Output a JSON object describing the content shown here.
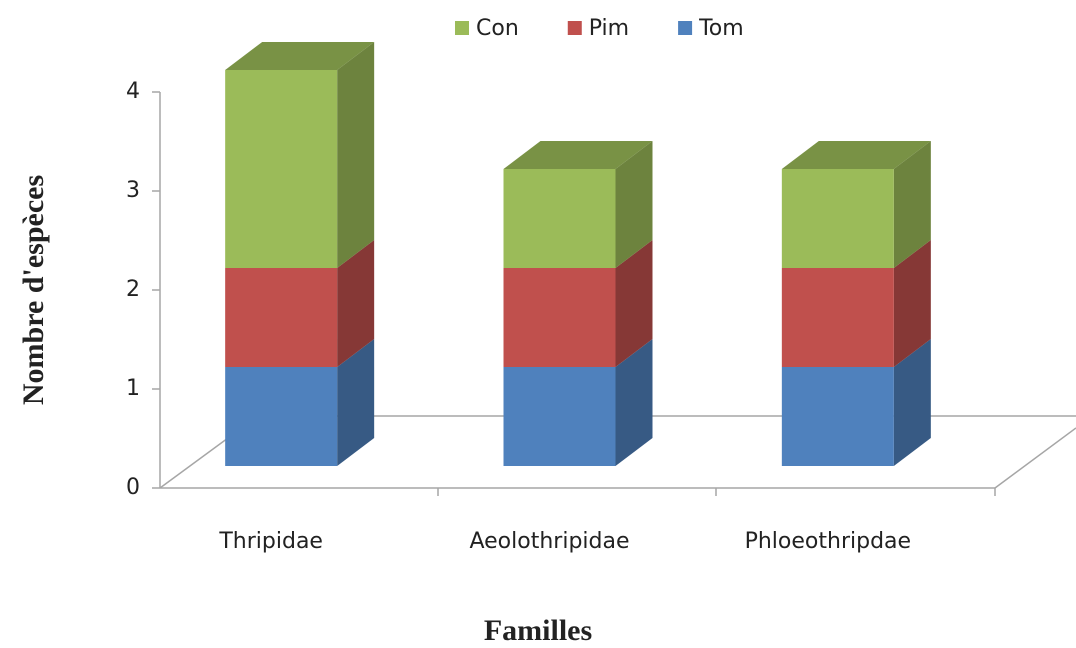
{
  "chart_data": {
    "type": "bar3d_stacked",
    "x_label": "Familles",
    "y_label": "Nombre d'espèces",
    "categories": [
      "Thripidae",
      "Aeolothripidae",
      "Phloeothripdae"
    ],
    "series": [
      {
        "name": "Tom",
        "color": "#4f81bd",
        "values": [
          1,
          1,
          1
        ]
      },
      {
        "name": "Pim",
        "color": "#c0504d",
        "values": [
          1,
          1,
          1
        ]
      },
      {
        "name": "Con",
        "color": "#9bbb59",
        "values": [
          2,
          1,
          1
        ]
      }
    ],
    "ylim": [
      0,
      4
    ],
    "yticks": [
      0,
      1,
      2,
      3,
      4
    ],
    "legend": "top"
  }
}
